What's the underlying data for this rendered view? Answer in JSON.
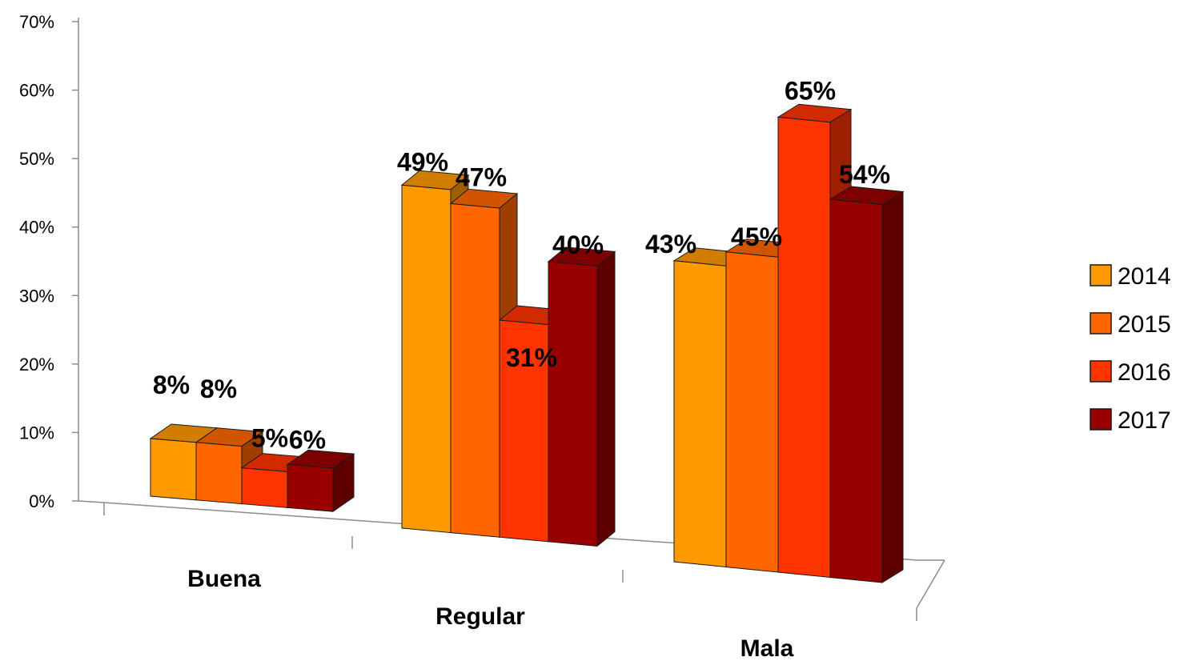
{
  "chart_data": {
    "type": "bar",
    "title": "",
    "xlabel": "",
    "ylabel": "",
    "categories": [
      "Buena",
      "Regular",
      "Mala"
    ],
    "series": [
      {
        "name": "2014",
        "color": "#FF9900",
        "values": [
          8,
          49,
          43
        ],
        "labels": [
          "8%",
          "49%",
          "43%"
        ]
      },
      {
        "name": "2015",
        "color": "#FF6600",
        "values": [
          8,
          47,
          45
        ],
        "labels": [
          "8%",
          "47%",
          "45%"
        ]
      },
      {
        "name": "2016",
        "color": "#FF3300",
        "values": [
          5,
          31,
          65
        ],
        "labels": [
          "5%",
          "31%",
          "65%"
        ]
      },
      {
        "name": "2017",
        "color": "#990000",
        "values": [
          6,
          40,
          54
        ],
        "labels": [
          "6%",
          "40%",
          "54%"
        ]
      }
    ],
    "yticks": [
      "0%",
      "10%",
      "20%",
      "30%",
      "40%",
      "50%",
      "60%",
      "70%"
    ],
    "ylim": [
      0,
      70
    ],
    "legend_position": "right",
    "three_d": true
  }
}
